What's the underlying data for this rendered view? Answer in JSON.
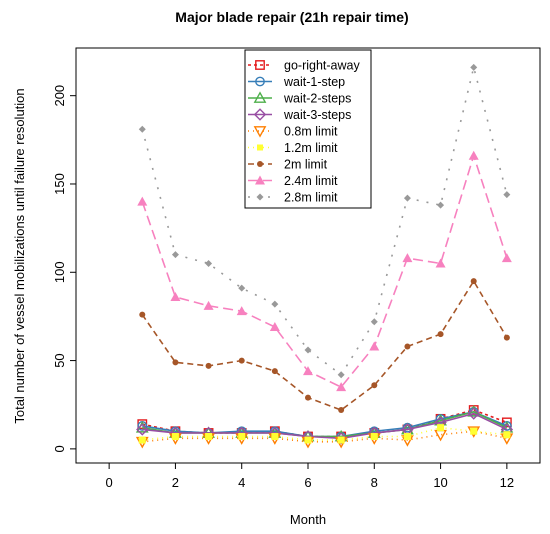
{
  "chart_data": {
    "type": "line",
    "title": "Major blade repair (21h repair time)",
    "xlabel": "Month",
    "ylabel": "Total number of vessel mobilizations until failure resolution",
    "xlim": [
      -1,
      13
    ],
    "ylim": [
      -8,
      227
    ],
    "xticks": [
      0,
      2,
      4,
      6,
      8,
      10,
      12
    ],
    "yticks": [
      0,
      50,
      100,
      150,
      200
    ],
    "grid": false,
    "legend_position": "top-center",
    "x": [
      1,
      2,
      3,
      4,
      5,
      6,
      7,
      8,
      9,
      10,
      11,
      12
    ],
    "series": [
      {
        "name": "go-right-away",
        "color": "#e41a1c",
        "dash": "3,3",
        "marker": "square",
        "values": [
          14,
          10,
          9,
          9,
          10,
          7,
          7,
          9,
          11,
          17,
          22,
          15
        ]
      },
      {
        "name": "wait-1-step",
        "color": "#377eb8",
        "dash": "none",
        "marker": "circle",
        "values": [
          13,
          10,
          9,
          10,
          10,
          7,
          7,
          10,
          12,
          17,
          21,
          13
        ]
      },
      {
        "name": "wait-2-steps",
        "color": "#4daf4a",
        "dash": "none",
        "marker": "triangle",
        "values": [
          12,
          9,
          9,
          9,
          9,
          7,
          7,
          9,
          11,
          16,
          21,
          12
        ]
      },
      {
        "name": "wait-3-steps",
        "color": "#984ea3",
        "dash": "none",
        "marker": "diamond",
        "values": [
          11,
          9,
          9,
          9,
          9,
          7,
          6,
          9,
          11,
          15,
          20,
          11
        ]
      },
      {
        "name": "0.8m limit",
        "color": "#ff7f00",
        "dash": "1,4",
        "marker": "triangle-down",
        "values": [
          4,
          6,
          6,
          6,
          6,
          4,
          4,
          6,
          5,
          8,
          10,
          6
        ]
      },
      {
        "name": "1.2m limit",
        "color": "#ffff33",
        "dash": "1,4",
        "marker": "square",
        "values": [
          5,
          7,
          7,
          7,
          7,
          5,
          5,
          7,
          7,
          12,
          10,
          8
        ]
      },
      {
        "name": "2m limit",
        "color": "#a65628",
        "dash": "6,4",
        "marker": "circle",
        "values": [
          76,
          49,
          47,
          50,
          44,
          29,
          22,
          36,
          58,
          65,
          95,
          63
        ]
      },
      {
        "name": "2.4m limit",
        "color": "#f781bf",
        "dash": "10,5",
        "marker": "triangle",
        "values": [
          140,
          86,
          81,
          78,
          69,
          44,
          35,
          58,
          108,
          105,
          166,
          108
        ]
      },
      {
        "name": "2.8m limit",
        "color": "#999999",
        "dash": "2,8",
        "marker": "diamond",
        "values": [
          181,
          110,
          105,
          91,
          82,
          56,
          42,
          72,
          142,
          138,
          216,
          144
        ]
      }
    ]
  }
}
